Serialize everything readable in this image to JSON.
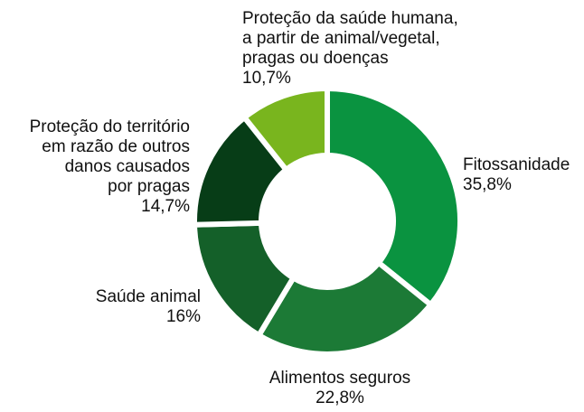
{
  "chart_data": {
    "type": "donut",
    "categories": [
      "Fitossanidade",
      "Alimentos seguros",
      "Saúde animal",
      "Proteção do território\nem razão de outros\ndanos causados\npor pragas",
      "Proteção da saúde humana,\na partir de animal/vegetal,\npragas ou doenças"
    ],
    "values": [
      35.8,
      22.8,
      16,
      14.7,
      10.7
    ],
    "value_labels": [
      "35,8%",
      "22,8%",
      "16%",
      "14,7%",
      "10,7%"
    ],
    "colors": [
      "#0a9340",
      "#1c7a36",
      "#146029",
      "#073d17",
      "#79b51e"
    ]
  }
}
